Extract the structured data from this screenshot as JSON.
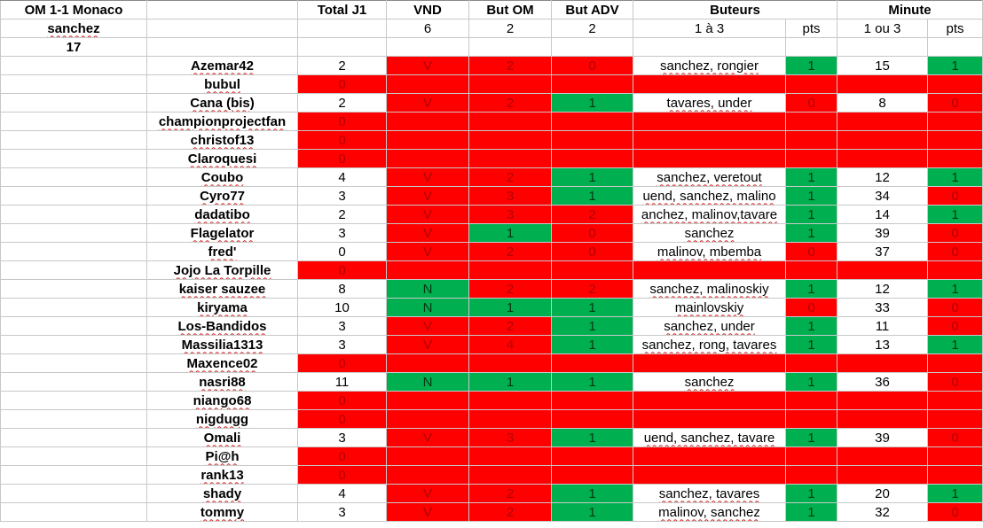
{
  "title": "OM 1-1 Monaco",
  "scorer": "sanchez",
  "minute": "17",
  "headers": {
    "total": "Total J1",
    "vnd": "VND",
    "but_om": "But OM",
    "but_adv": "But ADV",
    "buteurs": "Buteurs",
    "minute": "Minute"
  },
  "subheaders": {
    "vnd": "6",
    "but_om": "2",
    "but_adv": "2",
    "buteurs": "1 à 3",
    "buteurs_pts": "pts",
    "minute": "1 ou 3",
    "minute_pts": "pts"
  },
  "colors": {
    "red": "#ff0000",
    "green": "#00b050"
  },
  "rows": [
    {
      "name": "Azemar42",
      "total": "2",
      "vnd": "V",
      "om": "2",
      "adv": "0",
      "scorers": "sanchez, rongier",
      "sp": "1",
      "min": "15",
      "mp": "1",
      "cls": [
        "r",
        "r",
        "r",
        "w",
        "g",
        "w",
        "g"
      ]
    },
    {
      "name": "bubul",
      "total": "0",
      "empty": true
    },
    {
      "name": "Cana (bis)",
      "total": "2",
      "vnd": "V",
      "om": "2",
      "adv": "1",
      "scorers": "tavares, under",
      "sp": "0",
      "min": "8",
      "mp": "0",
      "cls": [
        "r",
        "r",
        "g",
        "w",
        "r",
        "w",
        "r"
      ]
    },
    {
      "name": "championprojectfan",
      "total": "0",
      "empty": true
    },
    {
      "name": "christof13",
      "total": "0",
      "empty": true
    },
    {
      "name": "Claroquesi",
      "total": "0",
      "empty": true
    },
    {
      "name": "Coubo",
      "total": "4",
      "vnd": "V",
      "om": "2",
      "adv": "1",
      "scorers": "sanchez, veretout",
      "sp": "1",
      "min": "12",
      "mp": "1",
      "cls": [
        "r",
        "r",
        "g",
        "w",
        "g",
        "w",
        "g"
      ]
    },
    {
      "name": "Cyro77",
      "total": "3",
      "vnd": "V",
      "om": "3",
      "adv": "1",
      "scorers": "uend, sanchez, malino",
      "sp": "1",
      "min": "34",
      "mp": "0",
      "cls": [
        "r",
        "r",
        "g",
        "w",
        "g",
        "w",
        "r"
      ]
    },
    {
      "name": "dadatibo",
      "total": "2",
      "vnd": "V",
      "om": "3",
      "adv": "2",
      "scorers": "anchez, malinov,tavare",
      "sp": "1",
      "min": "14",
      "mp": "1",
      "cls": [
        "r",
        "r",
        "r",
        "w",
        "g",
        "w",
        "g"
      ]
    },
    {
      "name": "Flagelator",
      "total": "3",
      "vnd": "V",
      "om": "1",
      "adv": "0",
      "scorers": "sanchez",
      "sp": "1",
      "min": "39",
      "mp": "0",
      "cls": [
        "r",
        "g",
        "r",
        "w",
        "g",
        "w",
        "r"
      ]
    },
    {
      "name": "fred'",
      "total": "0",
      "vnd": "V",
      "om": "2",
      "adv": "0",
      "scorers": "malinov, mbemba",
      "sp": "0",
      "min": "37",
      "mp": "0",
      "cls": [
        "r",
        "r",
        "r",
        "w",
        "r",
        "w",
        "r"
      ]
    },
    {
      "name": "Jojo La Torpille",
      "total": "0",
      "empty": true
    },
    {
      "name": "kaiser sauzee",
      "total": "8",
      "vnd": "N",
      "om": "2",
      "adv": "2",
      "scorers": "sanchez, malinoskiy",
      "sp": "1",
      "min": "12",
      "mp": "1",
      "cls": [
        "g",
        "r",
        "r",
        "w",
        "g",
        "w",
        "g"
      ]
    },
    {
      "name": "kiryama",
      "total": "10",
      "vnd": "N",
      "om": "1",
      "adv": "1",
      "scorers": "mainlovskiy",
      "sp": "0",
      "min": "33",
      "mp": "0",
      "cls": [
        "g",
        "g",
        "g",
        "w",
        "r",
        "w",
        "r"
      ]
    },
    {
      "name": "Los-Bandidos",
      "total": "3",
      "vnd": "V",
      "om": "2",
      "adv": "1",
      "scorers": "sanchez, under",
      "sp": "1",
      "min": "11",
      "mp": "0",
      "cls": [
        "r",
        "r",
        "g",
        "w",
        "g",
        "w",
        "r"
      ]
    },
    {
      "name": "Massilia1313",
      "total": "3",
      "vnd": "V",
      "om": "4",
      "adv": "1",
      "scorers": "sanchez, rong, tavares",
      "sp": "1",
      "min": "13",
      "mp": "1",
      "cls": [
        "r",
        "r",
        "g",
        "w",
        "g",
        "w",
        "g"
      ]
    },
    {
      "name": "Maxence02",
      "total": "0",
      "empty": true
    },
    {
      "name": "nasri88",
      "total": "11",
      "vnd": "N",
      "om": "1",
      "adv": "1",
      "scorers": "sanchez",
      "sp": "1",
      "min": "36",
      "mp": "0",
      "cls": [
        "g",
        "g",
        "g",
        "w",
        "g",
        "w",
        "r"
      ]
    },
    {
      "name": "niango68",
      "total": "0",
      "empty": true
    },
    {
      "name": "nigdugg",
      "total": "0",
      "empty": true
    },
    {
      "name": "Omali",
      "total": "3",
      "vnd": "V",
      "om": "3",
      "adv": "1",
      "scorers": "uend, sanchez, tavare",
      "sp": "1",
      "min": "39",
      "mp": "0",
      "cls": [
        "r",
        "r",
        "g",
        "w",
        "g",
        "w",
        "r"
      ]
    },
    {
      "name": "Pi@h",
      "total": "0",
      "empty": true
    },
    {
      "name": "rank13",
      "total": "0",
      "empty": true
    },
    {
      "name": "shady",
      "total": "4",
      "vnd": "V",
      "om": "2",
      "adv": "1",
      "scorers": "sanchez, tavares",
      "sp": "1",
      "min": "20",
      "mp": "1",
      "cls": [
        "r",
        "r",
        "g",
        "w",
        "g",
        "w",
        "g"
      ]
    },
    {
      "name": "tommy",
      "total": "3",
      "vnd": "V",
      "om": "2",
      "adv": "1",
      "scorers": "malinov, sanchez",
      "sp": "1",
      "min": "32",
      "mp": "0",
      "cls": [
        "r",
        "r",
        "g",
        "w",
        "g",
        "w",
        "r"
      ]
    }
  ]
}
